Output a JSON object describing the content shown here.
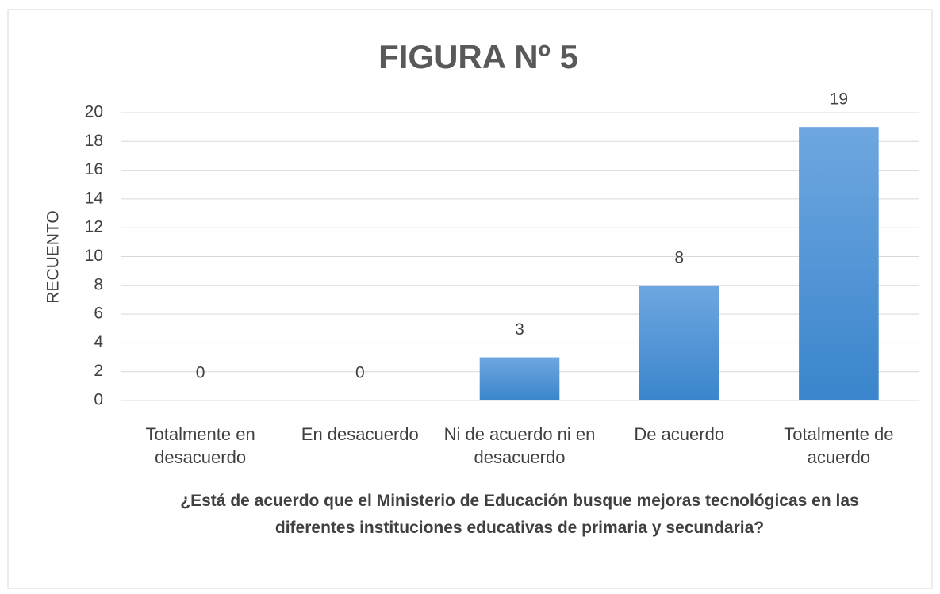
{
  "chart_data": {
    "type": "bar",
    "title": "FIGURA Nº 5",
    "x_label": "¿Está de acuerdo que el Ministerio de Educación busque mejoras tecnológicas en las diferentes instituciones educativas de primaria y secundaria?",
    "y_label": "RECUENTO",
    "categories": [
      "Totalmente en desacuerdo",
      "En desacuerdo",
      "Ni de acuerdo ni en desacuerdo",
      "De acuerdo",
      "Totalmente de acuerdo"
    ],
    "values": [
      0,
      0,
      3,
      8,
      19
    ],
    "color": "#4a90d9",
    "ylim": [
      0,
      20
    ],
    "yticks": [
      0,
      2,
      4,
      6,
      8,
      10,
      12,
      14,
      16,
      18,
      20
    ],
    "grid": true
  }
}
